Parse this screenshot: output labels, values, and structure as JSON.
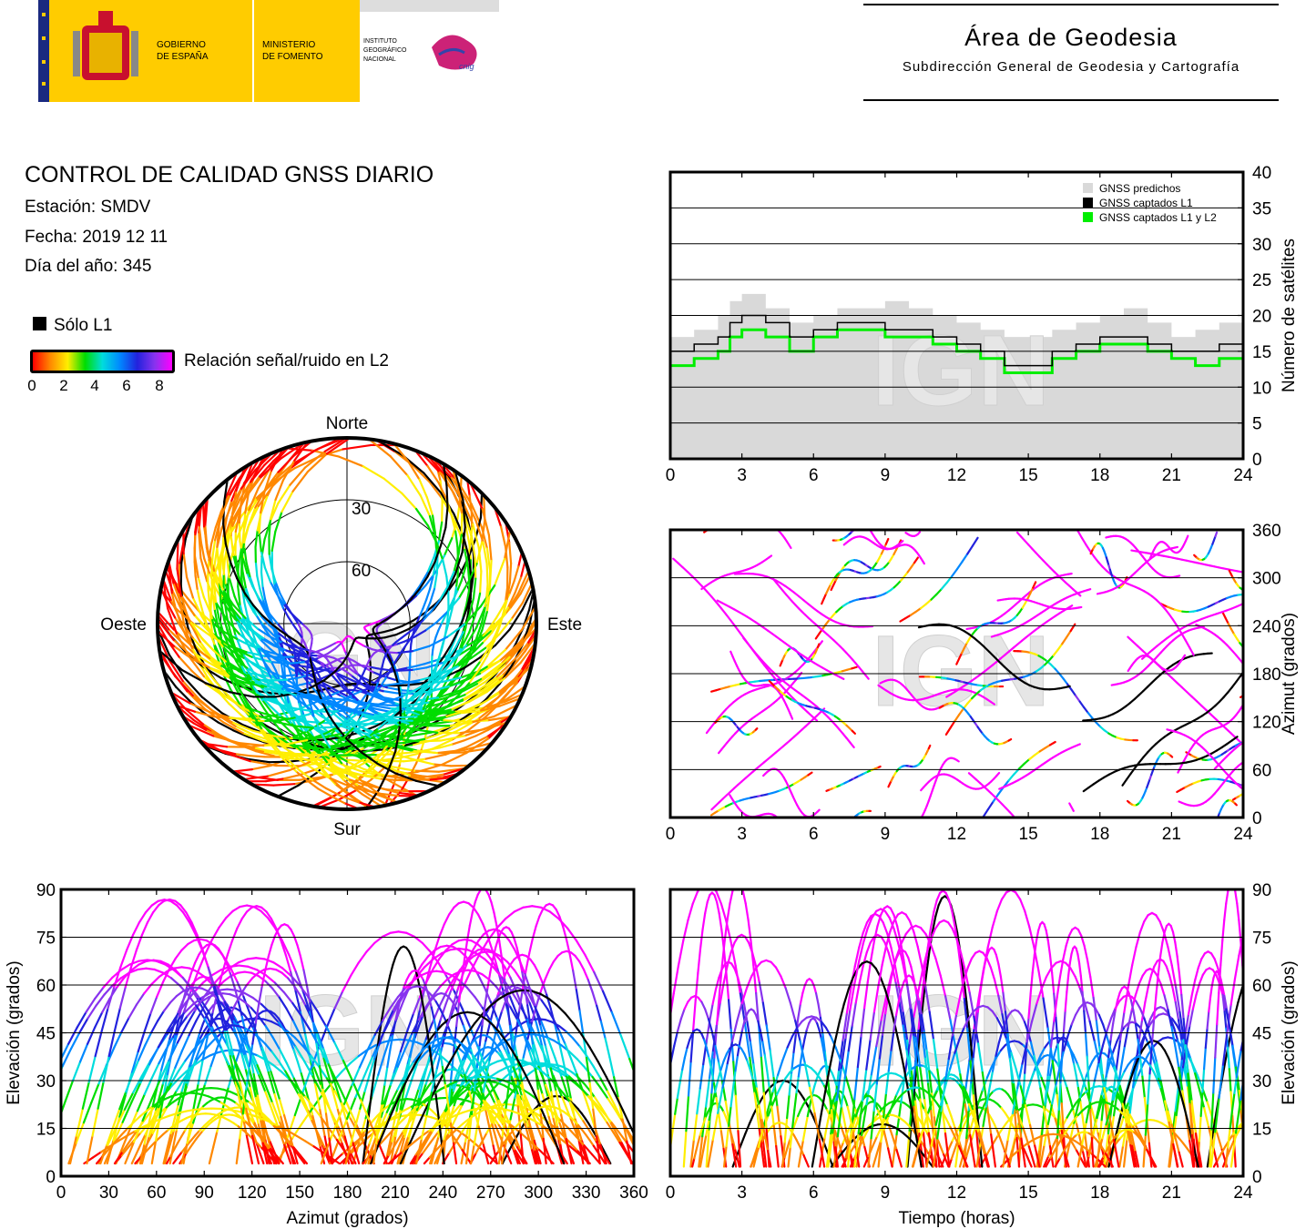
{
  "header": {
    "gov_line1": "GOBIERNO",
    "gov_line2": "DE ESPAÑA",
    "ministry_line1": "MINISTERIO",
    "ministry_line2": "DE FOMENTO",
    "ign_line1": "INSTITUTO",
    "ign_line2": "GEOGRÁFICO",
    "ign_line3": "NACIONAL",
    "cnig_logo_text": "cnig",
    "area_title": "Área de Geodesia",
    "area_subtitle": "Subdirección General de Geodesia y Cartografía"
  },
  "report": {
    "title": "CONTROL DE CALIDAD GNSS DIARIO",
    "station": "Estación: SMDV",
    "date": "Fecha: 2019 12 11",
    "doy": "Día del año: 345"
  },
  "legend": {
    "l1_only": "Sólo L1",
    "snr_label": "Relación señal/ruido en L2",
    "snr_ticks": [
      "0",
      "2",
      "4",
      "6",
      "8"
    ],
    "snr_colors": [
      "#ff0000",
      "#ff8800",
      "#ffee00",
      "#00dd00",
      "#00dddd",
      "#0088ff",
      "#2222dd",
      "#8833ee",
      "#ff00ff"
    ],
    "l1_color": "#000000"
  },
  "watermark": "IGN",
  "chart_data": [
    {
      "id": "satellites",
      "type": "area",
      "ylabel": "Número de satélites",
      "x_ticks": [
        "0",
        "3",
        "6",
        "9",
        "12",
        "15",
        "18",
        "21",
        "24"
      ],
      "y_ticks": [
        "0",
        "5",
        "10",
        "15",
        "20",
        "25",
        "30",
        "35",
        "40"
      ],
      "xlim": [
        0,
        24
      ],
      "ylim": [
        0,
        40
      ],
      "grid": true,
      "legend_position": "top-right",
      "colors": {
        "predicted": "#d9d9d9",
        "l1": "#000000",
        "l1l2": "#00ee00"
      },
      "series": [
        {
          "name": "GNSS predichos",
          "x": [
            0,
            1,
            2,
            2.5,
            3,
            3.5,
            4,
            5,
            6,
            7,
            8,
            9,
            10,
            11,
            12,
            13,
            14,
            15,
            16,
            17,
            18,
            19,
            20,
            21,
            22,
            23,
            24
          ],
          "values": [
            17,
            18,
            20,
            22,
            23,
            23,
            21,
            19,
            20,
            21,
            21,
            22,
            21,
            20,
            19,
            18,
            17,
            17,
            18,
            19,
            20,
            21,
            19,
            17,
            18,
            19,
            18
          ]
        },
        {
          "name": "GNSS captados L1",
          "x": [
            0,
            1,
            2,
            2.5,
            3,
            3.5,
            4,
            5,
            6,
            7,
            8,
            9,
            10,
            11,
            12,
            13,
            14,
            15,
            16,
            17,
            18,
            19,
            20,
            21,
            22,
            23,
            24
          ],
          "values": [
            15,
            16,
            17,
            19,
            20,
            20,
            19,
            17,
            18,
            19,
            19,
            18,
            18,
            17,
            16,
            15,
            13,
            13,
            15,
            16,
            17,
            17,
            16,
            15,
            15,
            16,
            15
          ]
        },
        {
          "name": "GNSS captados L1 y L2",
          "x": [
            0,
            1,
            2,
            2.5,
            3,
            3.5,
            4,
            5,
            6,
            7,
            8,
            9,
            10,
            11,
            12,
            13,
            14,
            15,
            16,
            17,
            18,
            19,
            20,
            21,
            22,
            23,
            24
          ],
          "values": [
            13,
            14,
            15,
            17,
            18,
            18,
            17,
            15,
            17,
            18,
            18,
            17,
            17,
            16,
            15,
            14,
            12,
            12,
            14,
            15,
            16,
            16,
            15,
            14,
            13,
            14,
            13
          ]
        }
      ]
    },
    {
      "id": "azimuth",
      "type": "scatter",
      "ylabel": "Azimut (grados)",
      "x_ticks": [
        "0",
        "3",
        "6",
        "9",
        "12",
        "15",
        "18",
        "21",
        "24"
      ],
      "y_ticks": [
        "0",
        "60",
        "120",
        "180",
        "240",
        "300",
        "360"
      ],
      "xlim": [
        0,
        24
      ],
      "ylim": [
        0,
        360
      ],
      "grid": true
    },
    {
      "id": "polar",
      "type": "scatter",
      "labels": {
        "north": "Norte",
        "south": "Sur",
        "east": "Este",
        "west": "Oeste"
      },
      "ring_labels": [
        "30",
        "60"
      ],
      "grid": true
    },
    {
      "id": "elev_az",
      "type": "scatter",
      "xlabel": "Azimut (grados)",
      "ylabel": "Elevación (grados)",
      "x_ticks": [
        "0",
        "30",
        "60",
        "90",
        "120",
        "150",
        "180",
        "210",
        "240",
        "270",
        "300",
        "330",
        "360"
      ],
      "y_ticks": [
        "0",
        "15",
        "30",
        "45",
        "60",
        "75",
        "90"
      ],
      "xlim": [
        0,
        360
      ],
      "ylim": [
        0,
        90
      ],
      "grid": true
    },
    {
      "id": "elev_time",
      "type": "scatter",
      "xlabel": "Tiempo (horas)",
      "ylabel": "Elevación (grados)",
      "x_ticks": [
        "0",
        "3",
        "6",
        "9",
        "12",
        "15",
        "18",
        "21",
        "24"
      ],
      "y_ticks": [
        "0",
        "15",
        "30",
        "45",
        "60",
        "75",
        "90"
      ],
      "xlim": [
        0,
        24
      ],
      "ylim": [
        0,
        90
      ],
      "grid": true
    }
  ]
}
